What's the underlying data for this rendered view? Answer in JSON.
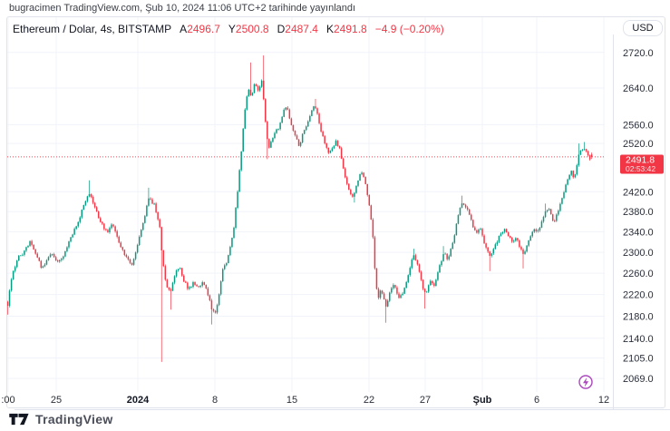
{
  "header": {
    "published_line": "bugracimen TradingView.com, Şub 10, 2024 11:06 UTC+2 tarihinde yayınlandı"
  },
  "toolbar": {
    "currency_button": "USD"
  },
  "legend": {
    "symbol_title": "Ethereum / Dolar, 4s, BITSTAMP",
    "open_label": "A",
    "open": "2496.7",
    "high_label": "Y",
    "high": "2500.8",
    "low_label": "D",
    "low": "2487.4",
    "close_label": "K",
    "close": "2491.8",
    "change": "−4.9 (−0.20%)"
  },
  "footer": {
    "brand": "TradingView"
  },
  "event_marker": {
    "icon": "lightning-in-circle",
    "color": "#ab47bc"
  },
  "chart_data": {
    "type": "candlestick",
    "symbol": "Ethereum / Dolar",
    "interval": "4s",
    "exchange": "BITSTAMP",
    "price_scale": "log",
    "grid": true,
    "last_price": 2491.8,
    "countdown": "02:53:42",
    "current_bar": {
      "open": 2496.7,
      "high": 2500.8,
      "low": 2487.4,
      "close": 2491.8,
      "change": -4.9,
      "change_pct": -0.2
    },
    "colors": {
      "up": "#089981",
      "down": "#f23645",
      "last_price_line": "#f23645",
      "grid": "#f0f3fa",
      "axis_text": "#2a2e39"
    },
    "y_ticks": [
      2720.0,
      2640.0,
      2560.0,
      2520.0,
      2420.0,
      2380.0,
      2340.0,
      2300.0,
      2260.0,
      2220.0,
      2180.0,
      2140.0,
      2105.0,
      2069.0
    ],
    "x_ticks": [
      {
        "label": ":00",
        "x": 9,
        "bold": false
      },
      {
        "label": "25",
        "x": 62,
        "bold": false
      },
      {
        "label": "2024",
        "x": 152,
        "bold": true
      },
      {
        "label": "8",
        "x": 237,
        "bold": false
      },
      {
        "label": "15",
        "x": 322,
        "bold": false
      },
      {
        "label": "22",
        "x": 407,
        "bold": false
      },
      {
        "label": "27",
        "x": 469,
        "bold": false
      },
      {
        "label": "Şub",
        "x": 532,
        "bold": true
      },
      {
        "label": "6",
        "x": 592,
        "bold": false
      },
      {
        "label": "12",
        "x": 666,
        "bold": false
      }
    ],
    "price_path": [
      [
        0,
        2255
      ],
      [
        4,
        2225
      ],
      [
        8,
        2195
      ],
      [
        13,
        2255
      ],
      [
        20,
        2290
      ],
      [
        26,
        2300
      ],
      [
        33,
        2320
      ],
      [
        40,
        2295
      ],
      [
        46,
        2270
      ],
      [
        52,
        2285
      ],
      [
        58,
        2300
      ],
      [
        63,
        2280
      ],
      [
        70,
        2295
      ],
      [
        78,
        2330
      ],
      [
        85,
        2355
      ],
      [
        92,
        2390
      ],
      [
        98,
        2420
      ],
      [
        104,
        2390
      ],
      [
        111,
        2360
      ],
      [
        118,
        2338
      ],
      [
        124,
        2355
      ],
      [
        131,
        2320
      ],
      [
        138,
        2295
      ],
      [
        145,
        2275
      ],
      [
        152,
        2315
      ],
      [
        158,
        2360
      ],
      [
        164,
        2405
      ],
      [
        170,
        2395
      ],
      [
        176,
        2350
      ],
      [
        179,
        2290
      ],
      [
        183,
        2240
      ],
      [
        188,
        2225
      ],
      [
        193,
        2258
      ],
      [
        198,
        2272
      ],
      [
        203,
        2245
      ],
      [
        208,
        2230
      ],
      [
        213,
        2242
      ],
      [
        218,
        2235
      ],
      [
        223,
        2242
      ],
      [
        228,
        2230
      ],
      [
        233,
        2195
      ],
      [
        238,
        2185
      ],
      [
        242,
        2225
      ],
      [
        246,
        2272
      ],
      [
        250,
        2282
      ],
      [
        254,
        2310
      ],
      [
        258,
        2350
      ],
      [
        262,
        2420
      ],
      [
        266,
        2500
      ],
      [
        270,
        2590
      ],
      [
        274,
        2640
      ],
      [
        277,
        2618
      ],
      [
        281,
        2650
      ],
      [
        285,
        2632
      ],
      [
        289,
        2660
      ],
      [
        293,
        2560
      ],
      [
        296,
        2508
      ],
      [
        300,
        2530
      ],
      [
        304,
        2545
      ],
      [
        308,
        2556
      ],
      [
        312,
        2585
      ],
      [
        316,
        2600
      ],
      [
        320,
        2570
      ],
      [
        325,
        2540
      ],
      [
        330,
        2515
      ],
      [
        334,
        2540
      ],
      [
        338,
        2560
      ],
      [
        342,
        2580
      ],
      [
        347,
        2605
      ],
      [
        351,
        2575
      ],
      [
        355,
        2540
      ],
      [
        359,
        2515
      ],
      [
        363,
        2500
      ],
      [
        367,
        2512
      ],
      [
        371,
        2525
      ],
      [
        375,
        2505
      ],
      [
        378,
        2470
      ],
      [
        382,
        2440
      ],
      [
        386,
        2420
      ],
      [
        390,
        2410
      ],
      [
        394,
        2440
      ],
      [
        398,
        2460
      ],
      [
        402,
        2445
      ],
      [
        405,
        2415
      ],
      [
        408,
        2385
      ],
      [
        411,
        2340
      ],
      [
        414,
        2250
      ],
      [
        417,
        2212
      ],
      [
        420,
        2230
      ],
      [
        423,
        2212
      ],
      [
        426,
        2196
      ],
      [
        430,
        2225
      ],
      [
        434,
        2240
      ],
      [
        437,
        2226
      ],
      [
        440,
        2212
      ],
      [
        444,
        2222
      ],
      [
        447,
        2236
      ],
      [
        450,
        2252
      ],
      [
        453,
        2275
      ],
      [
        456,
        2295
      ],
      [
        460,
        2280
      ],
      [
        463,
        2260
      ],
      [
        466,
        2236
      ],
      [
        469,
        2222
      ],
      [
        472,
        2232
      ],
      [
        475,
        2246
      ],
      [
        479,
        2236
      ],
      [
        482,
        2256
      ],
      [
        486,
        2280
      ],
      [
        490,
        2300
      ],
      [
        494,
        2286
      ],
      [
        498,
        2310
      ],
      [
        502,
        2340
      ],
      [
        506,
        2380
      ],
      [
        510,
        2400
      ],
      [
        514,
        2390
      ],
      [
        518,
        2370
      ],
      [
        522,
        2350
      ],
      [
        526,
        2340
      ],
      [
        530,
        2346
      ],
      [
        534,
        2320
      ],
      [
        538,
        2300
      ],
      [
        541,
        2292
      ],
      [
        545,
        2310
      ],
      [
        549,
        2325
      ],
      [
        553,
        2340
      ],
      [
        557,
        2346
      ],
      [
        561,
        2330
      ],
      [
        565,
        2320
      ],
      [
        569,
        2331
      ],
      [
        573,
        2310
      ],
      [
        577,
        2296
      ],
      [
        581,
        2312
      ],
      [
        585,
        2330
      ],
      [
        589,
        2346
      ],
      [
        593,
        2340
      ],
      [
        597,
        2356
      ],
      [
        601,
        2380
      ],
      [
        605,
        2386
      ],
      [
        608,
        2370
      ],
      [
        611,
        2356
      ],
      [
        614,
        2372
      ],
      [
        618,
        2396
      ],
      [
        622,
        2420
      ],
      [
        626,
        2446
      ],
      [
        630,
        2462
      ],
      [
        633,
        2442
      ],
      [
        636,
        2472
      ],
      [
        639,
        2500
      ],
      [
        642,
        2506
      ],
      [
        645,
        2512
      ],
      [
        648,
        2498
      ],
      [
        651,
        2488
      ],
      [
        654,
        2491.8
      ]
    ],
    "spikes": [
      [
        8,
        2183
      ],
      [
        98,
        2443
      ],
      [
        164,
        2428
      ],
      [
        179,
        2098
      ],
      [
        188,
        2192
      ],
      [
        233,
        2165
      ],
      [
        276,
        2697
      ],
      [
        290,
        2713
      ],
      [
        294,
        2487
      ],
      [
        347,
        2616
      ],
      [
        390,
        2398
      ],
      [
        426,
        2168
      ],
      [
        456,
        2307
      ],
      [
        469,
        2194
      ],
      [
        490,
        2312
      ],
      [
        510,
        2412
      ],
      [
        541,
        2264
      ],
      [
        577,
        2269
      ],
      [
        601,
        2396
      ],
      [
        639,
        2520
      ],
      [
        645,
        2523
      ]
    ]
  }
}
